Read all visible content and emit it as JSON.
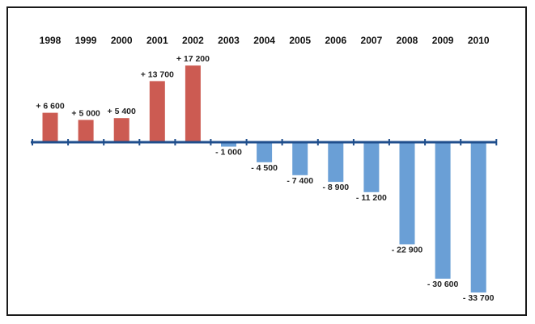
{
  "chart_data": {
    "type": "bar",
    "title": "",
    "xlabel": "",
    "ylabel": "",
    "categories": [
      "1998",
      "1999",
      "2000",
      "2001",
      "2002",
      "2003",
      "2004",
      "2005",
      "2006",
      "2007",
      "2008",
      "2009",
      "2010"
    ],
    "values": [
      6600,
      5000,
      5400,
      13700,
      17200,
      -1000,
      -4500,
      -7400,
      -8900,
      -11200,
      -22900,
      -30600,
      -33700
    ],
    "value_labels": [
      "+ 6 600",
      "+ 5 000",
      "+ 5 400",
      "+ 13 700",
      "+ 17 200",
      "- 1 000",
      "- 4 500",
      "- 7 400",
      "- 8 900",
      "- 11 200",
      "- 22 900",
      "- 30 600",
      "- 33 700"
    ],
    "ylim": [
      -33700,
      17200
    ],
    "grid": false,
    "legend": "none",
    "colors": {
      "positive": "#cc5b52",
      "negative": "#6a9fd6",
      "axis": "#1f4e8c"
    }
  }
}
